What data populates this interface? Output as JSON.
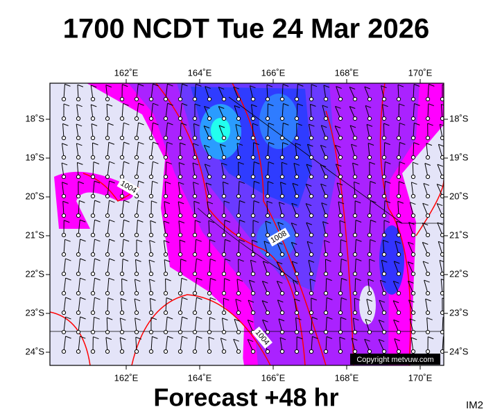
{
  "title": "1700 NCDT Tue 24 Mar 2026",
  "top_axis_labels": [
    "162˚E",
    "164˚E",
    "166˚E",
    "168˚E",
    "170˚E"
  ],
  "bottom_axis_labels": [
    "162˚E",
    "164˚E",
    "166˚E",
    "168˚E",
    "170˚E"
  ],
  "left_axis_labels": [
    "18˚S",
    "19˚S",
    "20˚S",
    "21˚S",
    "22˚S",
    "23˚S",
    "24˚S"
  ],
  "right_axis_labels": [
    "18˚S",
    "19˚S",
    "20˚S",
    "21˚S",
    "22˚S",
    "23˚S",
    "24˚S"
  ],
  "isobar_labels": [
    "1004",
    "1008",
    "1004"
  ],
  "copyright": "Copyright metvuw.com",
  "footer": "Forecast +48 hr",
  "image_id": "IM2"
}
